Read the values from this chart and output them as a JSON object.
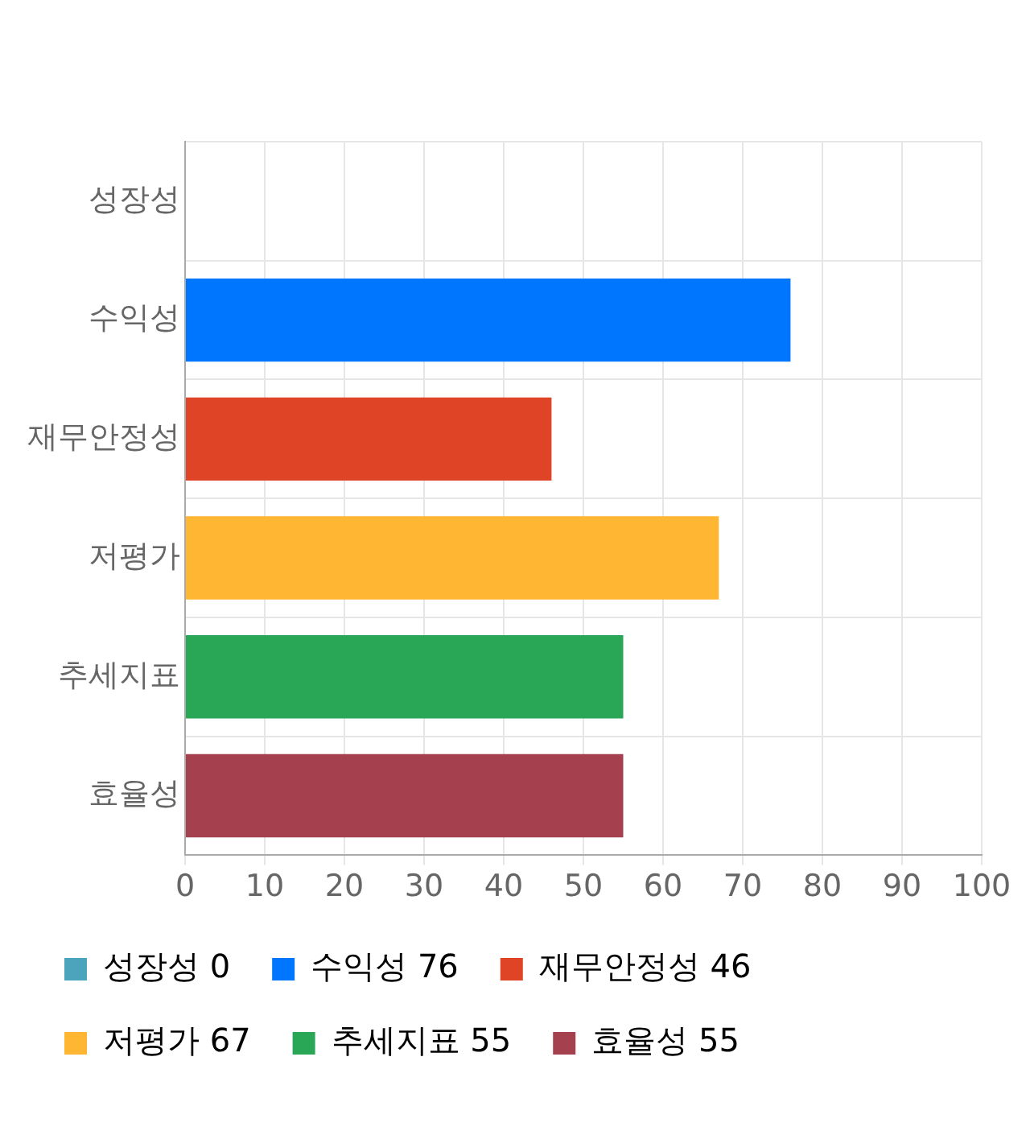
{
  "chart_data": {
    "type": "bar",
    "orientation": "horizontal",
    "stacked": true,
    "categories": [
      "성장성",
      "수익성",
      "재무안정성",
      "저평가",
      "추세지표",
      "효율성"
    ],
    "series": [
      {
        "name": "성장성 0",
        "color": "#4ba3bc",
        "values": [
          0,
          null,
          null,
          null,
          null,
          null
        ]
      },
      {
        "name": "수익성 76",
        "color": "#0076ff",
        "values": [
          null,
          76,
          null,
          null,
          null,
          null
        ]
      },
      {
        "name": "재무안정성 46",
        "color": "#e04426",
        "values": [
          null,
          null,
          46,
          null,
          null,
          null
        ]
      },
      {
        "name": "저평가 67",
        "color": "#ffb733",
        "values": [
          null,
          null,
          null,
          67,
          null,
          null
        ]
      },
      {
        "name": "추세지표 55",
        "color": "#29a656",
        "values": [
          null,
          null,
          null,
          null,
          55,
          null
        ]
      },
      {
        "name": "효율성 55",
        "color": "#a5404e",
        "values": [
          null,
          null,
          null,
          null,
          null,
          55
        ]
      }
    ],
    "xlim": [
      0,
      100
    ],
    "xticks": [
      0,
      10,
      20,
      30,
      40,
      50,
      60,
      70,
      80,
      90,
      100
    ],
    "grid": true,
    "legend": "bottom"
  }
}
